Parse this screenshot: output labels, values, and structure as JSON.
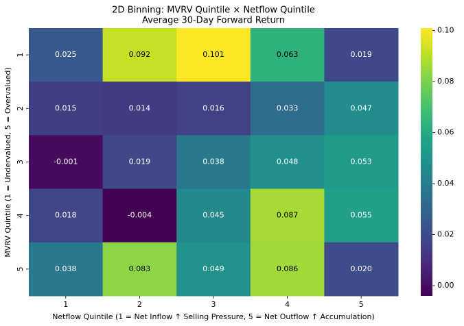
{
  "chart_data": {
    "type": "heatmap",
    "title": "2D Binning: MVRV Quintile × Netflow Quintile",
    "subtitle": "Average 30-Day Forward Return",
    "x_label": "Netflow Quintile (1 = Net Inflow ↑ Selling Pressure, 5 = Net Outflow ↑ Accumulation)",
    "y_label": "MVRV Quintile (1 = Undervalued, 5 = Overvalued)",
    "x_categories": [
      "1",
      "2",
      "3",
      "4",
      "5"
    ],
    "y_categories": [
      "1",
      "2",
      "3",
      "4",
      "5"
    ],
    "values": [
      [
        0.025,
        0.092,
        0.101,
        0.063,
        0.019
      ],
      [
        0.015,
        0.014,
        0.016,
        0.033,
        0.047
      ],
      [
        -0.001,
        0.019,
        0.038,
        0.048,
        0.053
      ],
      [
        0.018,
        -0.004,
        0.045,
        0.087,
        0.055
      ],
      [
        0.038,
        0.083,
        0.049,
        0.086,
        0.02
      ]
    ],
    "value_labels": [
      [
        "0.025",
        "0.092",
        "0.101",
        "0.063",
        "0.019"
      ],
      [
        "0.015",
        "0.014",
        "0.016",
        "0.033",
        "0.047"
      ],
      [
        "-0.001",
        "0.019",
        "0.038",
        "0.048",
        "0.053"
      ],
      [
        "0.018",
        "-0.004",
        "0.045",
        "0.087",
        "0.055"
      ],
      [
        "0.038",
        "0.083",
        "0.049",
        "0.086",
        "0.020"
      ]
    ],
    "cmap": "viridis",
    "clim": [
      -0.004,
      0.101
    ],
    "cticks": [
      {
        "value": 0,
        "label": "0.00"
      },
      {
        "value": 0.02,
        "label": "0.02"
      },
      {
        "value": 0.04,
        "label": "0.04"
      },
      {
        "value": 0.06,
        "label": "0.06"
      },
      {
        "value": 0.08,
        "label": "0.08"
      },
      {
        "value": 0.1,
        "label": "0.10"
      }
    ]
  }
}
